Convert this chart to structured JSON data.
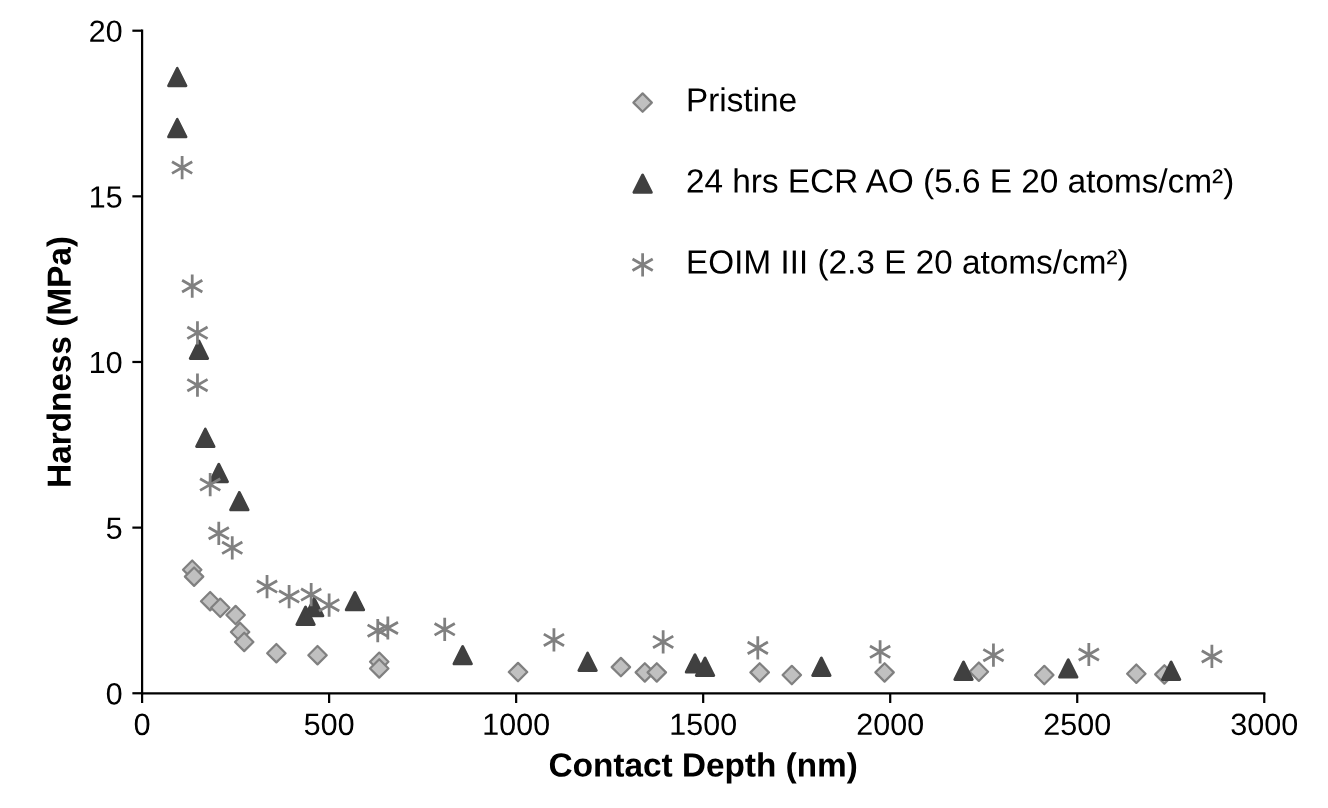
{
  "chart_data": {
    "type": "scatter",
    "xlabel": "Contact Depth (nm)",
    "ylabel": "Hardness (MPa)",
    "xlim": [
      0,
      3000
    ],
    "xticks": [
      0,
      500,
      1000,
      1500,
      2000,
      2500,
      3000
    ],
    "ylim": [
      0,
      20
    ],
    "yticks": [
      0,
      5,
      10,
      15,
      20
    ],
    "grid": false,
    "legend": "top right",
    "series": [
      {
        "name": "Pristine",
        "color": "#c0c0c0",
        "marker": "diamond",
        "x": [
          134,
          139,
          182,
          209,
          250,
          262,
          273,
          359,
          469,
          634,
          634,
          1005,
          1280,
          1344,
          1376,
          1651,
          1737,
          1985,
          2237,
          2412,
          2658,
          2733
        ],
        "values": [
          3.73,
          3.52,
          2.78,
          2.58,
          2.36,
          1.85,
          1.55,
          1.21,
          1.15,
          0.95,
          0.75,
          0.64,
          0.79,
          0.63,
          0.63,
          0.63,
          0.55,
          0.63,
          0.65,
          0.55,
          0.59,
          0.57
        ]
      },
      {
        "name": "24 hrs ECR AO (5.6 E 20 atoms/cm²)",
        "color": "#404040",
        "marker": "triangle",
        "x": [
          94,
          94,
          152,
          169,
          205,
          260,
          437,
          460,
          569,
          857,
          1191,
          1478,
          1505,
          1816,
          2196,
          2476,
          2751
        ],
        "values": [
          18.6,
          17.06,
          10.37,
          7.71,
          6.65,
          5.8,
          2.34,
          2.6,
          2.78,
          1.15,
          0.95,
          0.9,
          0.8,
          0.8,
          0.68,
          0.75,
          0.68
        ]
      },
      {
        "name": "EOIM III (2.3 E 20 atoms/cm²)",
        "color": "#808080",
        "marker": "cross",
        "x": [
          107,
          134,
          148,
          148,
          182,
          205,
          241,
          334,
          393,
          452,
          500,
          630,
          657,
          809,
          1101,
          1393,
          1646,
          1973,
          2276,
          2531,
          2860
        ],
        "values": [
          15.87,
          12.29,
          10.88,
          9.3,
          6.3,
          4.83,
          4.39,
          3.22,
          2.92,
          2.98,
          2.66,
          1.89,
          1.97,
          1.93,
          1.61,
          1.55,
          1.37,
          1.25,
          1.15,
          1.17,
          1.11
        ]
      }
    ]
  }
}
